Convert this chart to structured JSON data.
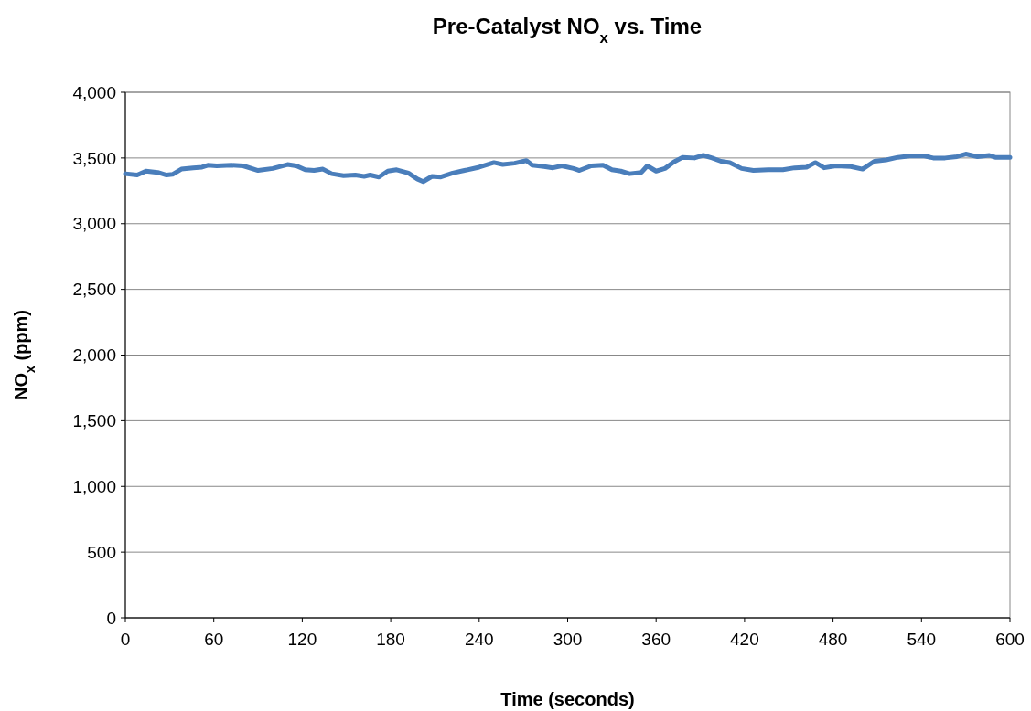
{
  "chart_data": {
    "type": "line",
    "title": "Pre-Catalyst NO$_{x}$ vs. Time",
    "xlabel": "Time (seconds)",
    "ylabel": "NO$_{x}$ (ppm)",
    "xlim": [
      0,
      600
    ],
    "xticks": [
      0,
      60,
      120,
      180,
      240,
      300,
      360,
      420,
      480,
      540,
      600
    ],
    "ylim": [
      0,
      4000
    ],
    "yticks": [
      {
        "value": 0,
        "label": "0"
      },
      {
        "value": 500,
        "label": "500"
      },
      {
        "value": 1000,
        "label": "1,000"
      },
      {
        "value": 1500,
        "label": "1,500"
      },
      {
        "value": 2000,
        "label": "2,000"
      },
      {
        "value": 2500,
        "label": "2,500"
      },
      {
        "value": 3000,
        "label": "3,000"
      },
      {
        "value": 3500,
        "label": "3,500"
      },
      {
        "value": 4000,
        "label": "4,000"
      }
    ],
    "grid": "y",
    "marker": "none",
    "line_style": "solid",
    "series": [
      {
        "color": "#4a7ebb",
        "x": [
          0,
          8,
          14,
          22,
          28,
          32,
          38,
          46,
          52,
          56,
          62,
          72,
          80,
          90,
          100,
          110,
          116,
          122,
          128,
          134,
          140,
          148,
          156,
          162,
          166,
          172,
          178,
          184,
          192,
          198,
          202,
          208,
          214,
          222,
          230,
          240,
          250,
          256,
          264,
          272,
          276,
          284,
          290,
          296,
          304,
          308,
          316,
          324,
          330,
          336,
          342,
          350,
          354,
          360,
          366,
          372,
          378,
          386,
          392,
          398,
          404,
          410,
          418,
          426,
          436,
          446,
          454,
          462,
          468,
          474,
          482,
          492,
          500,
          508,
          516,
          524,
          532,
          542,
          548,
          556,
          564,
          570,
          578,
          586,
          590,
          600
        ],
        "values": [
          3380,
          3370,
          3400,
          3390,
          3370,
          3375,
          3415,
          3425,
          3430,
          3445,
          3440,
          3445,
          3440,
          3405,
          3420,
          3450,
          3440,
          3410,
          3405,
          3415,
          3380,
          3365,
          3370,
          3360,
          3370,
          3355,
          3400,
          3410,
          3385,
          3340,
          3320,
          3360,
          3355,
          3385,
          3405,
          3430,
          3465,
          3450,
          3460,
          3480,
          3445,
          3435,
          3425,
          3440,
          3420,
          3405,
          3440,
          3445,
          3410,
          3400,
          3380,
          3390,
          3440,
          3400,
          3420,
          3470,
          3505,
          3500,
          3520,
          3500,
          3475,
          3465,
          3420,
          3405,
          3410,
          3410,
          3425,
          3430,
          3465,
          3425,
          3440,
          3435,
          3415,
          3475,
          3485,
          3505,
          3515,
          3515,
          3500,
          3500,
          3510,
          3530,
          3510,
          3520,
          3505,
          3505
        ]
      }
    ]
  }
}
